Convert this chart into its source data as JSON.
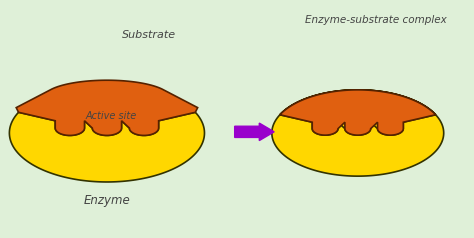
{
  "bg_color": "#dff0d8",
  "enzyme_color": "#FFD700",
  "enzyme_edge_color": "#333300",
  "substrate_color": "#E06010",
  "substrate_edge_color": "#552200",
  "arrow_color": "#9900CC",
  "text_color": "#444444",
  "label_substrate": "Substrate",
  "label_active_site": "Active site",
  "label_enzyme": "Enzyme",
  "label_complex": "Enzyme-substrate complex",
  "fig_width": 4.74,
  "fig_height": 2.38
}
